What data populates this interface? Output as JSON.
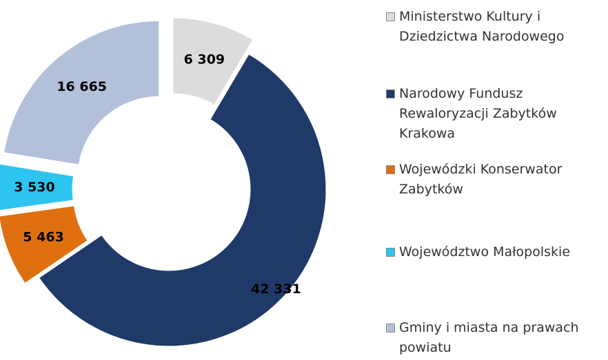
{
  "chart_data": {
    "type": "donut",
    "categories": [
      "Ministerstwo Kultury i Dziedzictwa Narodowego",
      "Narodowy Fundusz Rewaloryzacji Zabytków Krakowa",
      "Wojewódzki Konserwator Zabytków",
      "Województwo Małopolskie",
      "Gminy i miasta na prawach powiatu"
    ],
    "values": [
      6309,
      42331,
      5463,
      3530,
      16665
    ],
    "value_labels": [
      "6 309",
      "42 331",
      "5 463",
      "3 530",
      "16 665"
    ],
    "colors": [
      "#dcdcdc",
      "#1f3a68",
      "#e0700f",
      "#2ec4f0",
      "#b3c0da"
    ]
  }
}
